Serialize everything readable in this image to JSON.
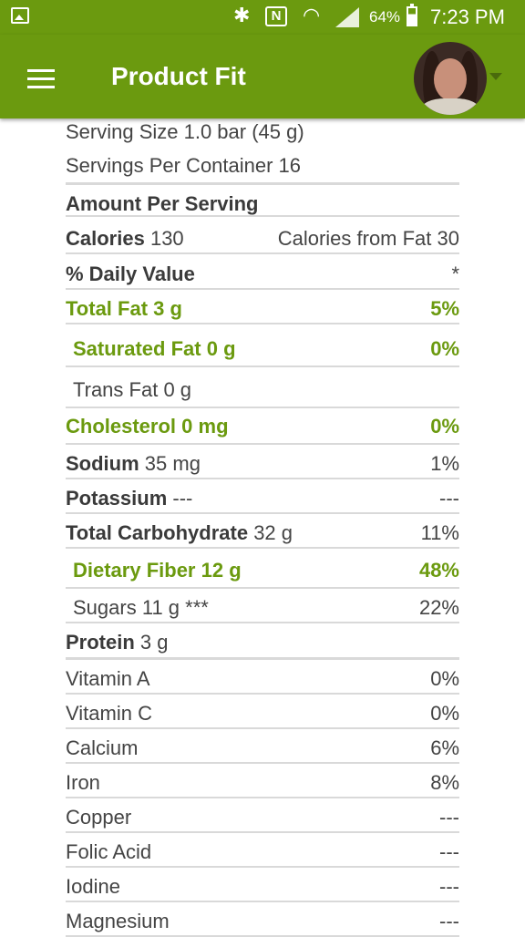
{
  "status_bar": {
    "battery": "64%",
    "time": "7:23 PM",
    "icons": [
      "gallery-icon",
      "bluetooth-icon",
      "nfc-icon",
      "wifi-icon",
      "signal-icon",
      "battery-icon"
    ]
  },
  "app_bar": {
    "title": "Product Fit",
    "menu_icon": "hamburger-menu-icon",
    "colors": {
      "primary": "#6b9a0f",
      "highlight": "#6b9a0f",
      "text": "#444444"
    }
  },
  "nutrition": {
    "serving_size": "Serving Size 1.0 bar (45 g)",
    "servings_per_container": "Servings Per Container 16",
    "amount_per_serving": "Amount Per Serving",
    "calories_label": "Calories",
    "calories_value": "130",
    "calories_from_fat": "Calories from Fat 30",
    "daily_value_label": "% Daily Value",
    "daily_value_mark": "*",
    "nutrients": [
      {
        "name": "Total Fat",
        "amount": "3 g",
        "dv": "5%"
      },
      {
        "name": "Saturated Fat",
        "amount": "0 g",
        "dv": "0%"
      },
      {
        "name": "Trans Fat",
        "amount": "0 g",
        "dv": ""
      },
      {
        "name": "Cholesterol",
        "amount": "0 mg",
        "dv": "0%"
      },
      {
        "name": "Sodium",
        "amount": "35 mg",
        "dv": "1%"
      },
      {
        "name": "Potassium",
        "amount": "---",
        "dv": "---"
      },
      {
        "name": "Total Carbohydrate",
        "amount": "32 g",
        "dv": "11%"
      },
      {
        "name": "Dietary Fiber",
        "amount": "12 g",
        "dv": "48%"
      },
      {
        "name": "Sugars",
        "amount": "11 g ***",
        "dv": "22%"
      },
      {
        "name": "Protein",
        "amount": "3 g",
        "dv": ""
      }
    ],
    "vitamins": [
      {
        "name": "Vitamin A",
        "dv": "0%"
      },
      {
        "name": "Vitamin C",
        "dv": "0%"
      },
      {
        "name": "Calcium",
        "dv": "6%"
      },
      {
        "name": "Iron",
        "dv": "8%"
      },
      {
        "name": "Copper",
        "dv": "---"
      },
      {
        "name": "Folic Acid",
        "dv": "---"
      },
      {
        "name": "Iodine",
        "dv": "---"
      },
      {
        "name": "Magnesium",
        "dv": "---"
      }
    ]
  }
}
